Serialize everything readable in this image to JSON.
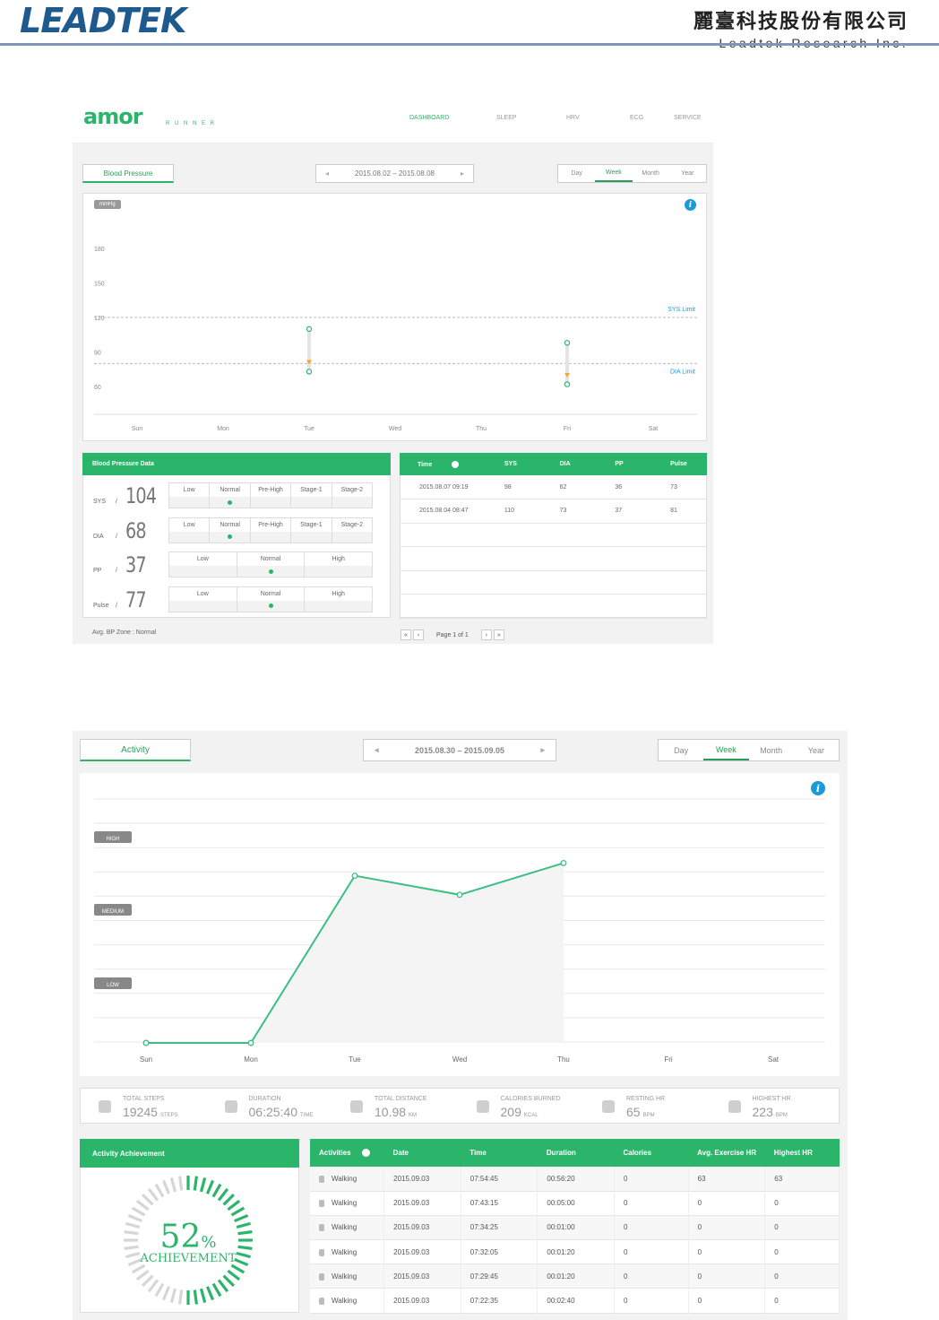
{
  "header": {
    "logo_text": "LEADTEK",
    "company_zh": "麗臺科技股份有限公司",
    "company_en": "Leadtek Research Inc."
  },
  "bp": {
    "brand": "amor",
    "brand_sub": "R U N N E R",
    "nav": [
      "DASHBOARD",
      "SLEEP",
      "HRV",
      "ECG",
      "SERVICE"
    ],
    "selector_label": "Blood Pressure",
    "date_range": "2015.08.02 – 2015.08.08",
    "prev": "◂",
    "next": "▸",
    "periods": [
      "Day",
      "Week",
      "Month",
      "Year"
    ],
    "active_period": "Week",
    "unit_tag": "mmHg",
    "info": "i",
    "y_ticks": [
      "180",
      "150",
      "120",
      "90",
      "60"
    ],
    "days": [
      "Sun",
      "Mon",
      "Tue",
      "Wed",
      "Thu",
      "Fri",
      "Sat"
    ],
    "sys_limit": "SYS Limit",
    "dia_limit": "DIA Limit",
    "data_title": "Blood Pressure Data",
    "metrics": [
      {
        "label": "SYS",
        "value": "104",
        "zones": [
          "Low",
          "Normal",
          "Pre-High",
          "Stage-1",
          "Stage-2"
        ],
        "active": 1
      },
      {
        "label": "DIA",
        "value": "68",
        "zones": [
          "Low",
          "Normal",
          "Pre-High",
          "Stage-1",
          "Stage-2"
        ],
        "active": 1
      },
      {
        "label": "PP",
        "value": "37",
        "zones": [
          "Low",
          "Normal",
          "High"
        ],
        "active": 1
      },
      {
        "label": "Pulse",
        "value": "77",
        "zones": [
          "Low",
          "Normal",
          "High"
        ],
        "active": 1
      }
    ],
    "slash": "/",
    "avg_zone": "Avg. BP Zone : Normal",
    "table_headers": [
      "Time",
      "SYS",
      "DIA",
      "PP",
      "Pulse"
    ],
    "rows": [
      [
        "2015.08.07 09:19",
        "98",
        "62",
        "36",
        "73"
      ],
      [
        "2015.08.04 08:47",
        "110",
        "73",
        "37",
        "81"
      ]
    ],
    "pager": {
      "first": "«",
      "prev": "‹",
      "text": "Page 1 of 1",
      "next": "›",
      "last": "»"
    },
    "chart_data": {
      "type": "scatter",
      "categories": [
        "Sun",
        "Mon",
        "Tue",
        "Wed",
        "Thu",
        "Fri",
        "Sat"
      ],
      "ylim": [
        50,
        190
      ],
      "series": [
        {
          "name": "SYS",
          "points": [
            [
              "Tue",
              110
            ],
            [
              "Fri",
              98
            ]
          ]
        },
        {
          "name": "DIA",
          "points": [
            [
              "Tue",
              73
            ],
            [
              "Fri",
              62
            ]
          ]
        }
      ],
      "reference_lines": [
        {
          "label": "SYS Limit",
          "y": 120
        },
        {
          "label": "DIA Limit",
          "y": 80
        }
      ]
    }
  },
  "activity": {
    "selector_label": "Activity",
    "date_range": "2015.08.30 – 2015.09.05",
    "prev": "◂",
    "next": "▸",
    "periods": [
      "Day",
      "Week",
      "Month",
      "Year"
    ],
    "active_period": "Week",
    "info": "i",
    "levels": [
      "HIGH",
      "MEDIUM",
      "LOW"
    ],
    "days": [
      "Sun",
      "Mon",
      "Tue",
      "Wed",
      "Thu",
      "Fri",
      "Sat"
    ],
    "stats": [
      {
        "label": "TOTAL STEPS",
        "value": "19245",
        "unit": "STEPS"
      },
      {
        "label": "DURATION",
        "value": "06:25:40",
        "unit": "TIME"
      },
      {
        "label": "TOTAL DISTANCE",
        "value": "10.98",
        "unit": "KM"
      },
      {
        "label": "CALORIES BURNED",
        "value": "209",
        "unit": "KCAL"
      },
      {
        "label": "RESTING HR",
        "value": "65",
        "unit": "BPM"
      },
      {
        "label": "HIGHEST HR",
        "value": "223",
        "unit": "BPM"
      }
    ],
    "achievement_title": "Activity Achievement",
    "achievement_value": "52",
    "achievement_pct": "%",
    "achievement_label": "ACHIEVEMENT",
    "achievement_fraction": 0.52,
    "table_headers": [
      "Activities",
      "Date",
      "Time",
      "Duration",
      "Calories",
      "Avg. Exercise HR",
      "Highest HR"
    ],
    "rows": [
      [
        "Walking",
        "2015.09.03",
        "07:54:45",
        "00:56:20",
        "0",
        "63",
        "63"
      ],
      [
        "Walking",
        "2015.09.03",
        "07:43:15",
        "00:05:00",
        "0",
        "0",
        "0"
      ],
      [
        "Walking",
        "2015.09.03",
        "07:34:25",
        "00:01:00",
        "0",
        "0",
        "0"
      ],
      [
        "Walking",
        "2015.09.03",
        "07:32:05",
        "00:01:20",
        "0",
        "0",
        "0"
      ],
      [
        "Walking",
        "2015.09.03",
        "07:29:45",
        "00:01:20",
        "0",
        "0",
        "0"
      ],
      [
        "Walking",
        "2015.09.03",
        "07:22:35",
        "00:02:40",
        "0",
        "0",
        "0"
      ]
    ],
    "chart_data": {
      "type": "line",
      "categories": [
        "Sun",
        "Mon",
        "Tue",
        "Wed",
        "Thu",
        "Fri",
        "Sat"
      ],
      "series": [
        {
          "values": [
            0,
            0,
            0.79,
            0.7,
            0.85,
            null,
            null
          ]
        }
      ],
      "level_bands": [
        "LOW",
        "MEDIUM",
        "HIGH"
      ]
    }
  },
  "colors": {
    "accent": "#2bb56b",
    "info": "#1a9ad6",
    "dia": "#f5a623"
  }
}
